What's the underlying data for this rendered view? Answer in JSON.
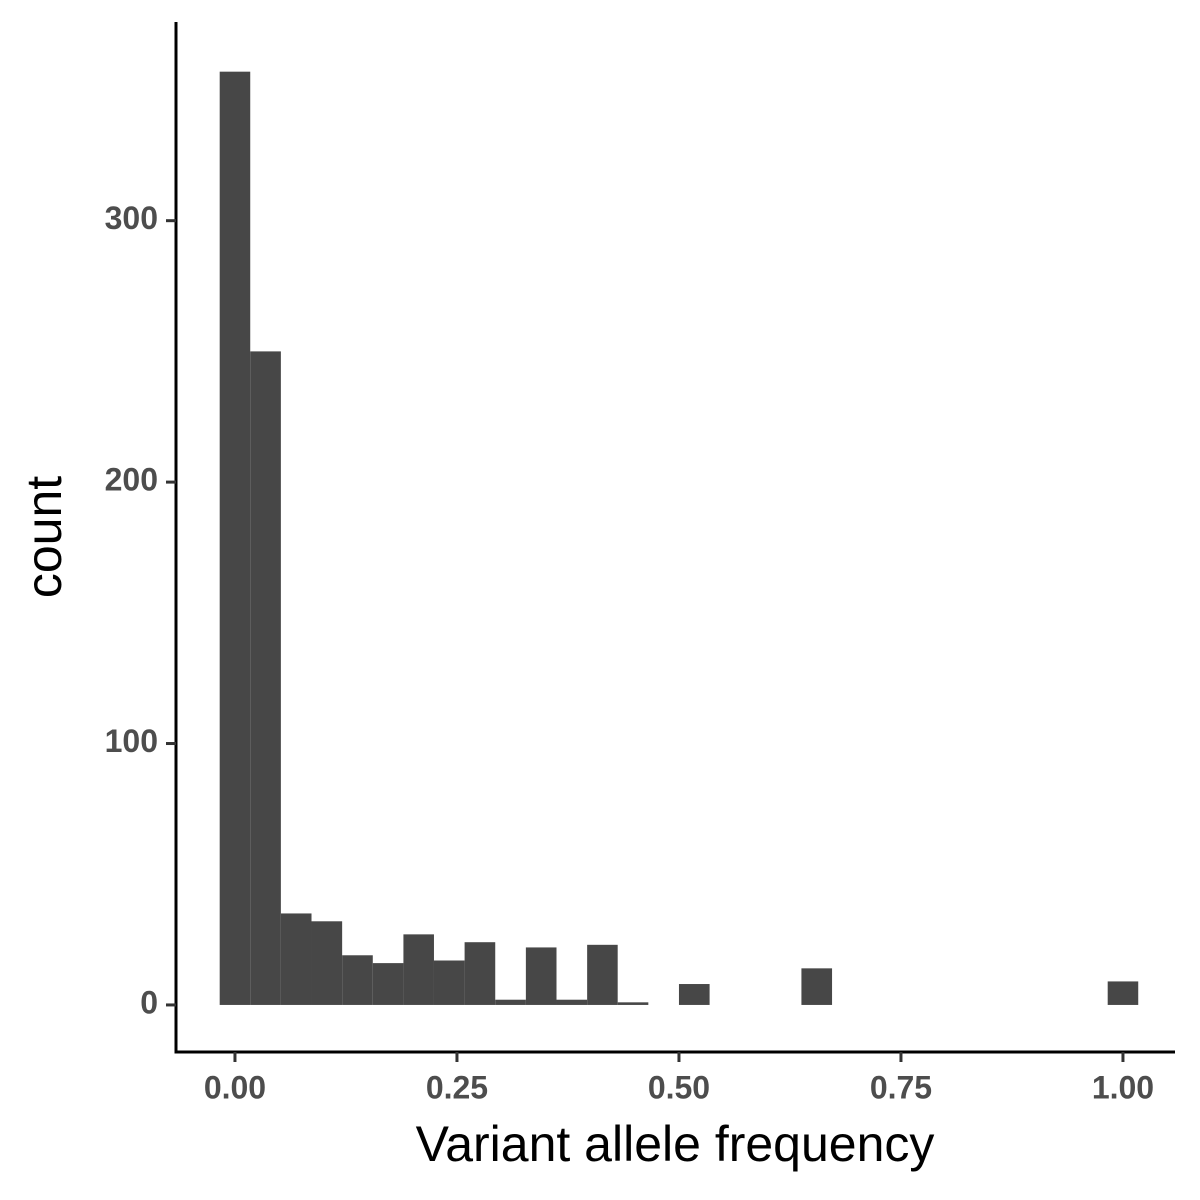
{
  "chart_data": {
    "type": "histogram",
    "x_label": "Variant allele frequency",
    "y_label": "count",
    "bins": [
      -0.0172,
      0.0172,
      0.0517,
      0.0862,
      0.1207,
      0.1552,
      0.1897,
      0.2241,
      0.2586,
      0.2931,
      0.3276,
      0.3621,
      0.3966,
      0.431,
      0.4655,
      0.5,
      0.5345,
      0.569,
      0.6034,
      0.6379,
      0.6724,
      0.7069,
      0.7414,
      0.7759,
      0.8103,
      0.8448,
      0.8793,
      0.9138,
      0.9483,
      0.9828,
      1.0172
    ],
    "values": [
      357,
      250,
      35,
      32,
      19,
      16,
      27,
      17,
      24,
      2,
      22,
      2,
      23,
      1,
      0,
      8,
      0,
      0,
      0,
      14,
      0,
      0,
      0,
      0,
      0,
      0,
      0,
      0,
      0,
      9
    ],
    "color": "#474747",
    "xlim": [
      -0.0664,
      1.0586
    ],
    "xticks": [
      {
        "value": 0,
        "label": "0.00"
      },
      {
        "value": 0.25,
        "label": "0.25"
      },
      {
        "value": 0.5,
        "label": "0.50"
      },
      {
        "value": 0.75,
        "label": "0.75"
      },
      {
        "value": 1,
        "label": "1.00"
      }
    ],
    "ylim": [
      -18,
      376
    ],
    "yticks": [
      0,
      100,
      200,
      300
    ],
    "grid": false
  }
}
